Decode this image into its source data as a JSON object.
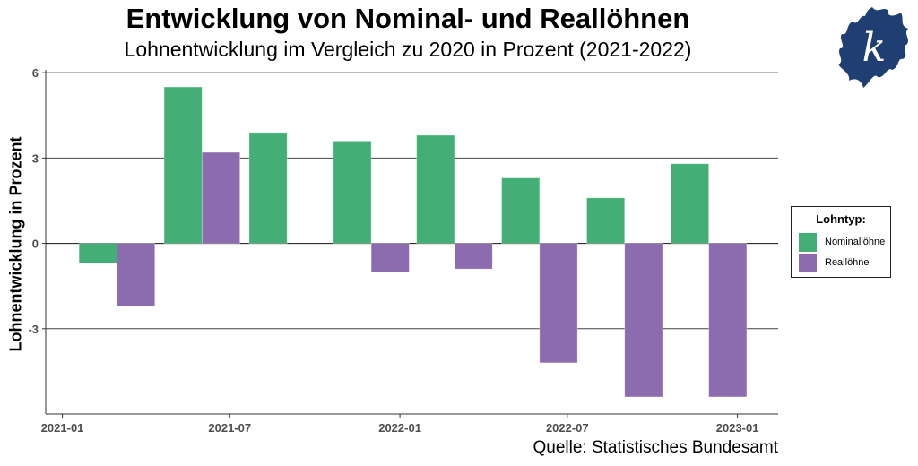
{
  "chart_data": {
    "type": "bar",
    "title": "Entwicklung von Nominal- und Reallöhnen",
    "subtitle": "Lohnentwicklung im Vergleich zu 2020 in Prozent (2021-2022)",
    "xlabel": "",
    "ylabel": "Lohnentwicklung in Prozent",
    "caption": "Quelle: Statistisches Bundesamt",
    "x": [
      "2021-03-01",
      "2021-06-01",
      "2021-09-01",
      "2021-12-01",
      "2022-03-01",
      "2022-06-01",
      "2022-09-01",
      "2022-12-01"
    ],
    "series": [
      {
        "name": "Nominallöhne",
        "color": "#43AE75",
        "values": [
          -0.7,
          5.5,
          3.9,
          3.6,
          3.8,
          2.3,
          1.6,
          2.8
        ]
      },
      {
        "name": "Reallöhne",
        "color": "#8D6BAF",
        "values": [
          -2.2,
          3.2,
          0.0,
          -1.0,
          -0.9,
          -4.2,
          -5.4,
          -5.4
        ]
      }
    ],
    "xlim": [
      "2020-12-14",
      "2023-02-14"
    ],
    "ylim": [
      -6,
      6.1
    ],
    "x_ticks": [
      "2021-01-01",
      "2021-07-01",
      "2022-01-01",
      "2022-07-01",
      "2023-01-01"
    ],
    "x_tick_labels": [
      "2021-01",
      "2021-07",
      "2022-01",
      "2022-07",
      "2023-01"
    ],
    "y_ticks": [
      6,
      3,
      0,
      -3
    ],
    "y_tick_labels": [
      "6",
      "3",
      "0",
      "-3"
    ],
    "grid": "horizontal major",
    "legend": {
      "title": "Lohntyp:",
      "placement": "right"
    }
  },
  "logo": {
    "letter": "k",
    "color": "#1F3F73"
  }
}
